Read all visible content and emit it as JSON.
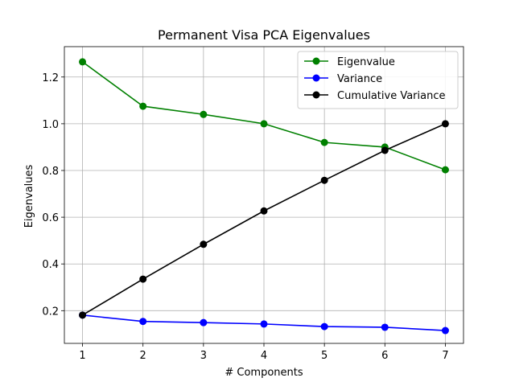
{
  "chart_data": {
    "type": "line",
    "title": "Permanent Visa PCA Eigenvalues",
    "xlabel": "# Components",
    "ylabel": "Eigenvalues",
    "x": [
      1,
      2,
      3,
      4,
      5,
      6,
      7
    ],
    "xticks": [
      "1",
      "2",
      "3",
      "4",
      "5",
      "6",
      "7"
    ],
    "yticks": [
      "0.2",
      "0.4",
      "0.6",
      "0.8",
      "1.0",
      "1.2"
    ],
    "xlim": [
      0.7,
      7.3
    ],
    "ylim": [
      0.06,
      1.33
    ],
    "grid": true,
    "legend_position": "top-right",
    "series": [
      {
        "name": "Eigenvalue",
        "color": "#008000",
        "values": [
          1.265,
          1.075,
          1.04,
          1.0,
          0.92,
          0.9,
          0.803
        ]
      },
      {
        "name": "Variance",
        "color": "#0000ff",
        "values": [
          0.181,
          0.154,
          0.149,
          0.143,
          0.132,
          0.129,
          0.115
        ]
      },
      {
        "name": "Cumulative Variance",
        "color": "#000000",
        "values": [
          0.181,
          0.335,
          0.484,
          0.627,
          0.758,
          0.886,
          1.0
        ]
      }
    ]
  }
}
